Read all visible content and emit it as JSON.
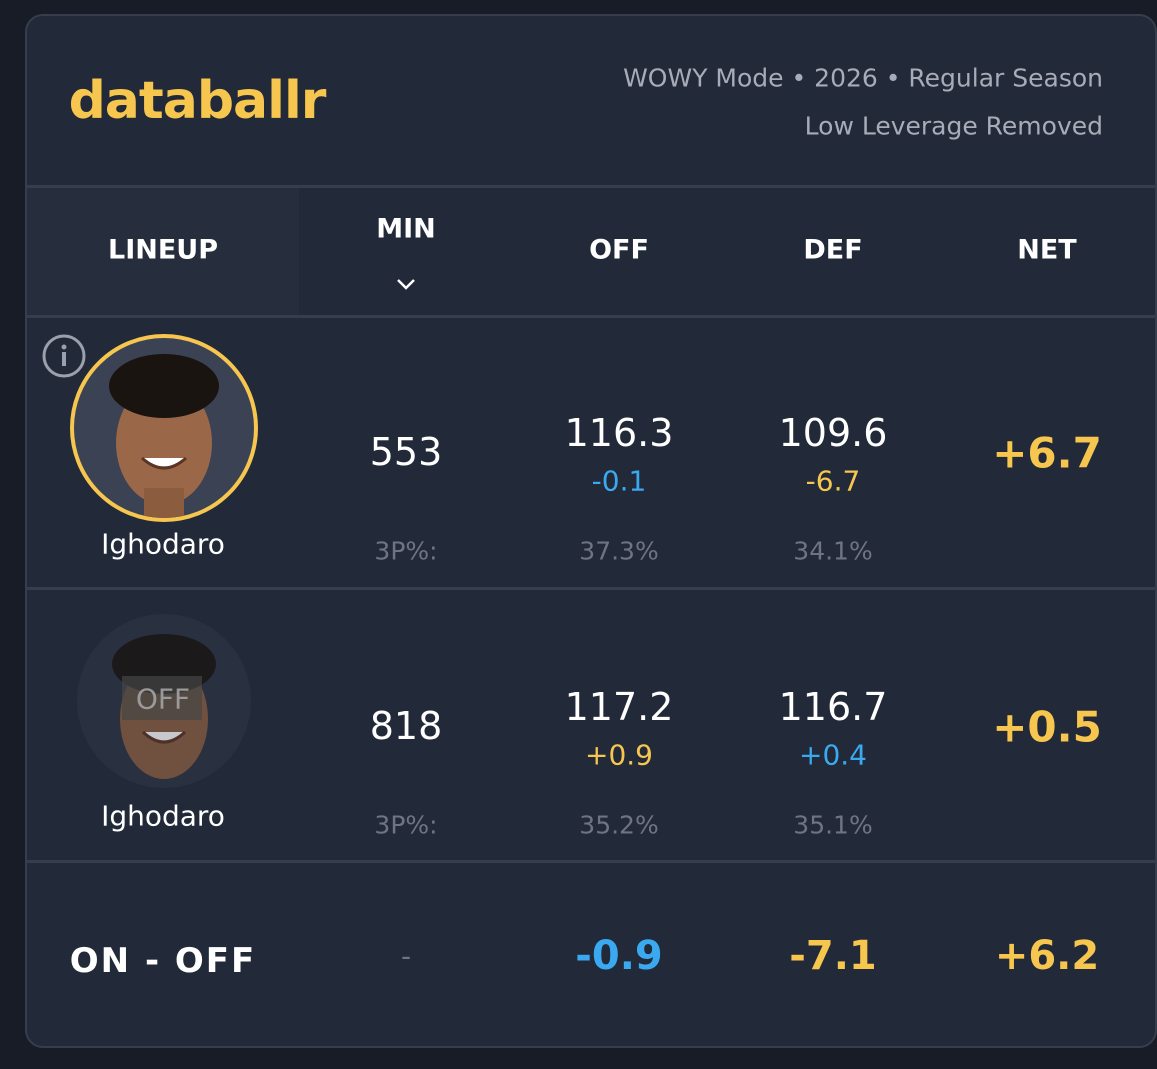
{
  "header": {
    "logo": "databallr",
    "info_line1": "WOWY Mode • 2026 • Regular Season",
    "info_line2": "Low Leverage Removed"
  },
  "table": {
    "columns": [
      "LINEUP",
      "MIN",
      "OFF",
      "DEF",
      "NET"
    ],
    "rows": [
      {
        "player": "Ighodaro",
        "min": "553",
        "off": "116.3",
        "off_diff": "-0.1",
        "def": "109.6",
        "def_diff": "-6.7",
        "net": "+6.7",
        "three_label": "3P%:",
        "off_3p": "37.3%",
        "def_3p": "34.1%"
      },
      {
        "player": "Ighodaro",
        "badge": "OFF",
        "min": "818",
        "off": "117.2",
        "off_diff": "+0.9",
        "def": "116.7",
        "def_diff": "+0.4",
        "net": "+0.5",
        "three_label": "3P%:",
        "off_3p": "35.2%",
        "def_3p": "35.1%"
      }
    ],
    "summary": {
      "label": "ON - OFF",
      "min": "-",
      "off": "-0.9",
      "def": "-7.1",
      "net": "+6.2"
    }
  }
}
